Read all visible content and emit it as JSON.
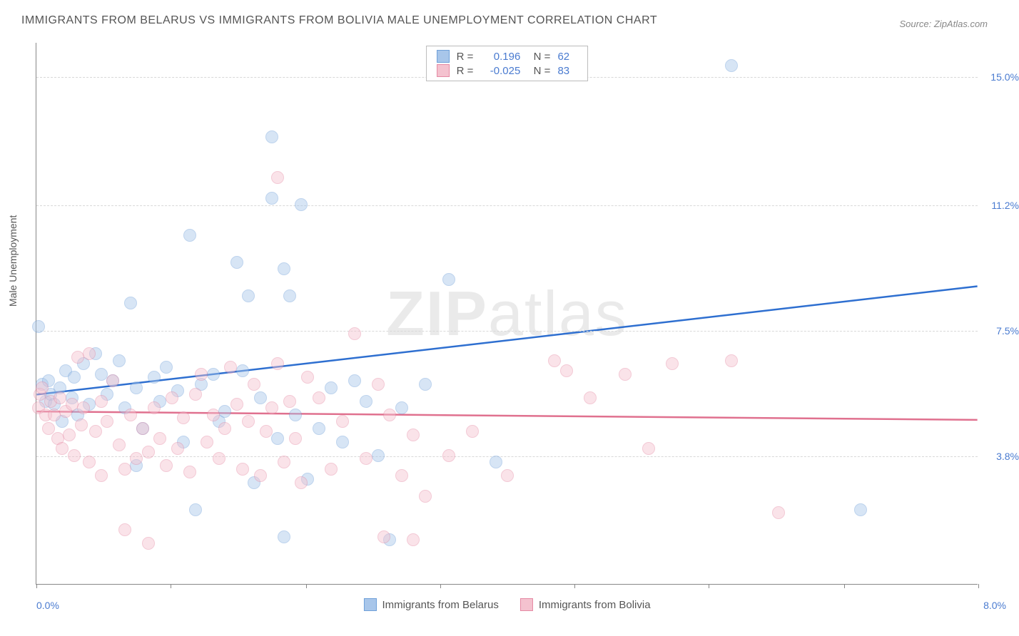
{
  "title": "IMMIGRANTS FROM BELARUS VS IMMIGRANTS FROM BOLIVIA MALE UNEMPLOYMENT CORRELATION CHART",
  "source": "Source: ZipAtlas.com",
  "ylabel": "Male Unemployment",
  "watermark_a": "ZIP",
  "watermark_b": "atlas",
  "chart": {
    "type": "scatter",
    "xlim": [
      0,
      8
    ],
    "ylim": [
      0,
      16
    ],
    "x_left_label": "0.0%",
    "x_right_label": "8.0%",
    "y_ticks": [
      {
        "value": 3.8,
        "label": "3.8%"
      },
      {
        "value": 7.5,
        "label": "7.5%"
      },
      {
        "value": 11.2,
        "label": "11.2%"
      },
      {
        "value": 15.0,
        "label": "15.0%"
      }
    ],
    "x_tick_values": [
      0,
      1.14,
      2.29,
      3.43,
      4.57,
      5.71,
      6.86,
      8
    ],
    "grid_color": "#d8d8d8",
    "background_color": "#ffffff",
    "point_radius": 9,
    "point_opacity": 0.45,
    "series": [
      {
        "name": "Immigrants from Belarus",
        "color_fill": "#a8c6ea",
        "color_stroke": "#6fa0d9",
        "line_color": "#2e6fd0",
        "R": "0.196",
        "N": "62",
        "trend": {
          "y_at_x0": 5.6,
          "y_at_x8": 8.8
        },
        "points": [
          [
            0.02,
            7.6
          ],
          [
            0.05,
            5.9
          ],
          [
            0.08,
            5.4
          ],
          [
            0.1,
            6.0
          ],
          [
            0.12,
            5.6
          ],
          [
            0.15,
            5.3
          ],
          [
            0.2,
            5.8
          ],
          [
            0.22,
            4.8
          ],
          [
            0.25,
            6.3
          ],
          [
            0.3,
            5.5
          ],
          [
            0.32,
            6.1
          ],
          [
            0.35,
            5.0
          ],
          [
            0.4,
            6.5
          ],
          [
            0.45,
            5.3
          ],
          [
            0.5,
            6.8
          ],
          [
            0.55,
            6.2
          ],
          [
            0.6,
            5.6
          ],
          [
            0.65,
            6.0
          ],
          [
            0.7,
            6.6
          ],
          [
            0.75,
            5.2
          ],
          [
            0.8,
            8.3
          ],
          [
            0.85,
            5.8
          ],
          [
            0.85,
            3.5
          ],
          [
            0.9,
            4.6
          ],
          [
            1.0,
            6.1
          ],
          [
            1.05,
            5.4
          ],
          [
            1.1,
            6.4
          ],
          [
            1.2,
            5.7
          ],
          [
            1.25,
            4.2
          ],
          [
            1.3,
            10.3
          ],
          [
            1.35,
            2.2
          ],
          [
            1.4,
            5.9
          ],
          [
            1.5,
            6.2
          ],
          [
            1.55,
            4.8
          ],
          [
            1.6,
            5.1
          ],
          [
            1.7,
            9.5
          ],
          [
            1.75,
            6.3
          ],
          [
            1.8,
            8.5
          ],
          [
            1.85,
            3.0
          ],
          [
            1.9,
            5.5
          ],
          [
            2.0,
            13.2
          ],
          [
            2.0,
            11.4
          ],
          [
            2.05,
            4.3
          ],
          [
            2.1,
            9.3
          ],
          [
            2.1,
            1.4
          ],
          [
            2.15,
            8.5
          ],
          [
            2.2,
            5.0
          ],
          [
            2.25,
            11.2
          ],
          [
            2.3,
            3.1
          ],
          [
            2.4,
            4.6
          ],
          [
            2.5,
            5.8
          ],
          [
            2.6,
            4.2
          ],
          [
            2.7,
            6.0
          ],
          [
            2.8,
            5.4
          ],
          [
            2.9,
            3.8
          ],
          [
            3.0,
            1.3
          ],
          [
            3.1,
            5.2
          ],
          [
            3.3,
            5.9
          ],
          [
            3.5,
            9.0
          ],
          [
            3.9,
            3.6
          ],
          [
            5.9,
            15.3
          ],
          [
            7.0,
            2.2
          ]
        ]
      },
      {
        "name": "Immigrants from Bolivia",
        "color_fill": "#f4c2cf",
        "color_stroke": "#e58aa4",
        "line_color": "#e0718f",
        "R": "-0.025",
        "N": "83",
        "trend": {
          "y_at_x0": 5.1,
          "y_at_x8": 4.85
        },
        "points": [
          [
            0.02,
            5.2
          ],
          [
            0.03,
            5.6
          ],
          [
            0.05,
            5.8
          ],
          [
            0.08,
            5.0
          ],
          [
            0.1,
            4.6
          ],
          [
            0.12,
            5.4
          ],
          [
            0.15,
            5.0
          ],
          [
            0.18,
            4.3
          ],
          [
            0.2,
            5.5
          ],
          [
            0.22,
            4.0
          ],
          [
            0.25,
            5.1
          ],
          [
            0.28,
            4.4
          ],
          [
            0.3,
            5.3
          ],
          [
            0.32,
            3.8
          ],
          [
            0.35,
            6.7
          ],
          [
            0.38,
            4.7
          ],
          [
            0.4,
            5.2
          ],
          [
            0.45,
            6.8
          ],
          [
            0.45,
            3.6
          ],
          [
            0.5,
            4.5
          ],
          [
            0.55,
            5.4
          ],
          [
            0.55,
            3.2
          ],
          [
            0.6,
            4.8
          ],
          [
            0.65,
            6.0
          ],
          [
            0.7,
            4.1
          ],
          [
            0.75,
            3.4
          ],
          [
            0.75,
            1.6
          ],
          [
            0.8,
            5.0
          ],
          [
            0.85,
            3.7
          ],
          [
            0.9,
            4.6
          ],
          [
            0.95,
            3.9
          ],
          [
            0.95,
            1.2
          ],
          [
            1.0,
            5.2
          ],
          [
            1.05,
            4.3
          ],
          [
            1.1,
            3.5
          ],
          [
            1.15,
            5.5
          ],
          [
            1.2,
            4.0
          ],
          [
            1.25,
            4.9
          ],
          [
            1.3,
            3.3
          ],
          [
            1.35,
            5.6
          ],
          [
            1.4,
            6.2
          ],
          [
            1.45,
            4.2
          ],
          [
            1.5,
            5.0
          ],
          [
            1.55,
            3.7
          ],
          [
            1.6,
            4.6
          ],
          [
            1.65,
            6.4
          ],
          [
            1.7,
            5.3
          ],
          [
            1.75,
            3.4
          ],
          [
            1.8,
            4.8
          ],
          [
            1.85,
            5.9
          ],
          [
            1.9,
            3.2
          ],
          [
            1.95,
            4.5
          ],
          [
            2.0,
            5.2
          ],
          [
            2.05,
            6.5
          ],
          [
            2.05,
            12.0
          ],
          [
            2.1,
            3.6
          ],
          [
            2.15,
            5.4
          ],
          [
            2.2,
            4.3
          ],
          [
            2.25,
            3.0
          ],
          [
            2.3,
            6.1
          ],
          [
            2.4,
            5.5
          ],
          [
            2.5,
            3.4
          ],
          [
            2.6,
            4.8
          ],
          [
            2.7,
            7.4
          ],
          [
            2.8,
            3.7
          ],
          [
            2.9,
            5.9
          ],
          [
            2.95,
            1.4
          ],
          [
            3.0,
            5.0
          ],
          [
            3.1,
            3.2
          ],
          [
            3.2,
            4.4
          ],
          [
            3.2,
            1.3
          ],
          [
            3.3,
            2.6
          ],
          [
            3.5,
            3.8
          ],
          [
            3.7,
            4.5
          ],
          [
            4.0,
            3.2
          ],
          [
            4.4,
            6.6
          ],
          [
            4.5,
            6.3
          ],
          [
            5.0,
            6.2
          ],
          [
            5.4,
            6.5
          ],
          [
            5.9,
            6.6
          ],
          [
            6.3,
            2.1
          ],
          [
            5.2,
            4.0
          ],
          [
            4.7,
            5.5
          ]
        ]
      }
    ]
  }
}
